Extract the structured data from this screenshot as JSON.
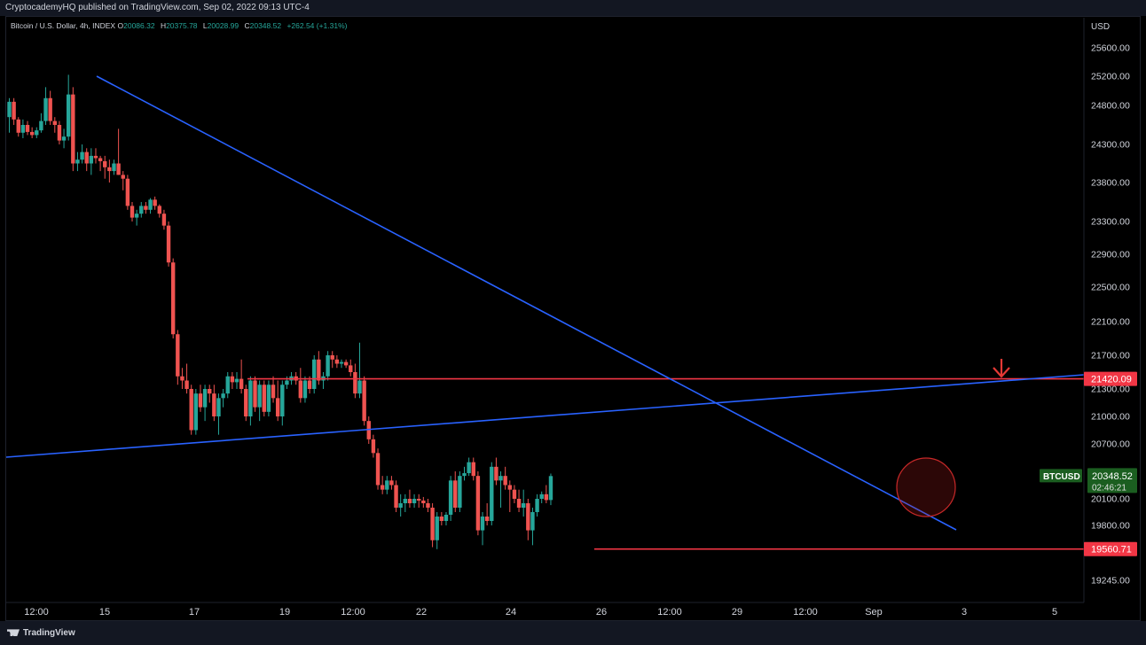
{
  "header": {
    "published": "CryptocademyHQ published on TradingView.com, Sep 02, 2022 09:13 UTC-4"
  },
  "legend": {
    "symbol": "Bitcoin / U.S. Dollar, 4h, INDEX",
    "o_label": "O",
    "o": "20086.32",
    "h_label": "H",
    "h": "20375.78",
    "l_label": "L",
    "l": "20028.99",
    "c_label": "C",
    "c": "20348.52",
    "change": "+262.54 (+1.31%)"
  },
  "colors": {
    "bull": "#26a69a",
    "bear": "#ef5350",
    "trendline": "#2962ff",
    "support_line": "#f23645",
    "background": "#000000",
    "text": "#d1d4dc"
  },
  "price_axis": {
    "currency": "USD",
    "ticks": [
      "25600.00",
      "25200.00",
      "24800.00",
      "24300.00",
      "23800.00",
      "23300.00",
      "22900.00",
      "22500.00",
      "22100.00",
      "21700.00",
      "21300.00",
      "21000.00",
      "20700.00",
      "20100.00",
      "19800.00",
      "19245.00"
    ]
  },
  "price_labels": {
    "resistance": "21420.09",
    "support": "19560.71",
    "ticker": "BTCUSD",
    "last_price": "20348.52",
    "countdown": "02:46:21"
  },
  "time_axis": {
    "ticks": [
      "12:00",
      "15",
      "17",
      "19",
      "12:00",
      "22",
      "24",
      "26",
      "12:00",
      "29",
      "12:00",
      "Sep",
      "3",
      "5"
    ]
  },
  "footer": {
    "brand": "TradingView"
  },
  "chart_data": {
    "type": "candlestick",
    "symbol": "Bitcoin / U.S. Dollar",
    "timeframe": "4h",
    "ylim": [
      19100,
      25800
    ],
    "horizontal_levels": [
      {
        "price": 21420.09
      },
      {
        "price": 19560.71
      }
    ],
    "trendlines": [
      {
        "from": {
          "time": "Aug 14 20:00",
          "price": 25220
        },
        "to": {
          "time": "Sep 03 04:00",
          "price": 19870
        }
      },
      {
        "from": {
          "time": "Aug 13 00:00",
          "price": 20550
        },
        "to": {
          "time": "Sep 04 20:00",
          "price": 21490
        }
      }
    ],
    "candles": [
      {
        "o": 24650,
        "h": 24900,
        "l": 24450,
        "c": 24850
      },
      {
        "o": 24850,
        "h": 24900,
        "l": 24550,
        "c": 24620
      },
      {
        "o": 24620,
        "h": 24650,
        "l": 24400,
        "c": 24450
      },
      {
        "o": 24450,
        "h": 24620,
        "l": 24380,
        "c": 24550
      },
      {
        "o": 24550,
        "h": 24600,
        "l": 24420,
        "c": 24460
      },
      {
        "o": 24460,
        "h": 24520,
        "l": 24380,
        "c": 24420
      },
      {
        "o": 24420,
        "h": 24520,
        "l": 24380,
        "c": 24480
      },
      {
        "o": 24480,
        "h": 24700,
        "l": 24450,
        "c": 24600
      },
      {
        "o": 24600,
        "h": 25050,
        "l": 24550,
        "c": 24900
      },
      {
        "o": 24900,
        "h": 25000,
        "l": 24550,
        "c": 24600
      },
      {
        "o": 24600,
        "h": 24650,
        "l": 24450,
        "c": 24550
      },
      {
        "o": 24550,
        "h": 24600,
        "l": 24300,
        "c": 24350
      },
      {
        "o": 24350,
        "h": 24500,
        "l": 24250,
        "c": 24400
      },
      {
        "o": 24400,
        "h": 25220,
        "l": 24350,
        "c": 24950
      },
      {
        "o": 24950,
        "h": 25050,
        "l": 23950,
        "c": 24050
      },
      {
        "o": 24050,
        "h": 24200,
        "l": 23950,
        "c": 24100
      },
      {
        "o": 24100,
        "h": 24300,
        "l": 24050,
        "c": 24200
      },
      {
        "o": 24200,
        "h": 24250,
        "l": 23950,
        "c": 24050
      },
      {
        "o": 24050,
        "h": 24250,
        "l": 23900,
        "c": 24150
      },
      {
        "o": 24150,
        "h": 24250,
        "l": 24050,
        "c": 24120
      },
      {
        "o": 24120,
        "h": 24150,
        "l": 23950,
        "c": 24080
      },
      {
        "o": 24080,
        "h": 24150,
        "l": 23850,
        "c": 24000
      },
      {
        "o": 24000,
        "h": 24100,
        "l": 23800,
        "c": 23950
      },
      {
        "o": 23950,
        "h": 24100,
        "l": 23900,
        "c": 24050
      },
      {
        "o": 24050,
        "h": 24500,
        "l": 23900,
        "c": 23900
      },
      {
        "o": 23900,
        "h": 23950,
        "l": 23700,
        "c": 23850
      },
      {
        "o": 23850,
        "h": 23900,
        "l": 23450,
        "c": 23500
      },
      {
        "o": 23500,
        "h": 23550,
        "l": 23300,
        "c": 23350
      },
      {
        "o": 23350,
        "h": 23450,
        "l": 23250,
        "c": 23400
      },
      {
        "o": 23400,
        "h": 23550,
        "l": 23350,
        "c": 23500
      },
      {
        "o": 23500,
        "h": 23550,
        "l": 23400,
        "c": 23450
      },
      {
        "o": 23450,
        "h": 23600,
        "l": 23400,
        "c": 23580
      },
      {
        "o": 23580,
        "h": 23620,
        "l": 23450,
        "c": 23500
      },
      {
        "o": 23500,
        "h": 23520,
        "l": 23350,
        "c": 23400
      },
      {
        "o": 23400,
        "h": 23450,
        "l": 23200,
        "c": 23250
      },
      {
        "o": 23250,
        "h": 23300,
        "l": 22750,
        "c": 22800
      },
      {
        "o": 22800,
        "h": 22850,
        "l": 21900,
        "c": 21950
      },
      {
        "o": 21950,
        "h": 22000,
        "l": 21350,
        "c": 21450
      },
      {
        "o": 21450,
        "h": 21550,
        "l": 21300,
        "c": 21400
      },
      {
        "o": 21400,
        "h": 21600,
        "l": 21250,
        "c": 21300
      },
      {
        "o": 21300,
        "h": 21350,
        "l": 20800,
        "c": 20850
      },
      {
        "o": 20850,
        "h": 21300,
        "l": 20800,
        "c": 21250
      },
      {
        "o": 21250,
        "h": 21350,
        "l": 21050,
        "c": 21100
      },
      {
        "o": 21100,
        "h": 21350,
        "l": 20950,
        "c": 21300
      },
      {
        "o": 21300,
        "h": 21350,
        "l": 21150,
        "c": 21250
      },
      {
        "o": 21250,
        "h": 21350,
        "l": 20950,
        "c": 21000
      },
      {
        "o": 21000,
        "h": 21250,
        "l": 20800,
        "c": 21200
      },
      {
        "o": 21200,
        "h": 21300,
        "l": 21100,
        "c": 21250
      },
      {
        "o": 21250,
        "h": 21500,
        "l": 21200,
        "c": 21450
      },
      {
        "o": 21450,
        "h": 21500,
        "l": 21300,
        "c": 21380
      },
      {
        "o": 21380,
        "h": 21500,
        "l": 21300,
        "c": 21420
      },
      {
        "o": 21420,
        "h": 21650,
        "l": 21250,
        "c": 21300
      },
      {
        "o": 21300,
        "h": 21350,
        "l": 20950,
        "c": 21000
      },
      {
        "o": 21000,
        "h": 21450,
        "l": 20900,
        "c": 21400
      },
      {
        "o": 21400,
        "h": 21450,
        "l": 21050,
        "c": 21100
      },
      {
        "o": 21100,
        "h": 21400,
        "l": 20950,
        "c": 21350
      },
      {
        "o": 21350,
        "h": 21400,
        "l": 21000,
        "c": 21050
      },
      {
        "o": 21050,
        "h": 21400,
        "l": 21000,
        "c": 21350
      },
      {
        "o": 21350,
        "h": 21450,
        "l": 21150,
        "c": 21200
      },
      {
        "o": 21200,
        "h": 21400,
        "l": 20950,
        "c": 21000
      },
      {
        "o": 21000,
        "h": 21400,
        "l": 20900,
        "c": 21350
      },
      {
        "o": 21350,
        "h": 21450,
        "l": 21300,
        "c": 21400
      },
      {
        "o": 21400,
        "h": 21500,
        "l": 21350,
        "c": 21450
      },
      {
        "o": 21450,
        "h": 21500,
        "l": 21350,
        "c": 21400
      },
      {
        "o": 21400,
        "h": 21550,
        "l": 21150,
        "c": 21200
      },
      {
        "o": 21200,
        "h": 21450,
        "l": 21150,
        "c": 21400
      },
      {
        "o": 21400,
        "h": 21450,
        "l": 21250,
        "c": 21300
      },
      {
        "o": 21300,
        "h": 21700,
        "l": 21250,
        "c": 21650
      },
      {
        "o": 21650,
        "h": 21750,
        "l": 21350,
        "c": 21400
      },
      {
        "o": 21400,
        "h": 21500,
        "l": 21300,
        "c": 21450
      },
      {
        "o": 21450,
        "h": 21750,
        "l": 21400,
        "c": 21700
      },
      {
        "o": 21700,
        "h": 21750,
        "l": 21550,
        "c": 21650
      },
      {
        "o": 21650,
        "h": 21700,
        "l": 21550,
        "c": 21600
      },
      {
        "o": 21600,
        "h": 21650,
        "l": 21550,
        "c": 21620
      },
      {
        "o": 21620,
        "h": 21650,
        "l": 21550,
        "c": 21580
      },
      {
        "o": 21580,
        "h": 21650,
        "l": 21450,
        "c": 21500
      },
      {
        "o": 21500,
        "h": 21600,
        "l": 21200,
        "c": 21250
      },
      {
        "o": 21250,
        "h": 21850,
        "l": 21200,
        "c": 21400
      },
      {
        "o": 21400,
        "h": 21450,
        "l": 20900,
        "c": 20950
      },
      {
        "o": 20950,
        "h": 21000,
        "l": 20700,
        "c": 20750
      },
      {
        "o": 20750,
        "h": 20800,
        "l": 20550,
        "c": 20600
      },
      {
        "o": 20600,
        "h": 20650,
        "l": 20200,
        "c": 20250
      },
      {
        "o": 20250,
        "h": 20350,
        "l": 20150,
        "c": 20200
      },
      {
        "o": 20200,
        "h": 20350,
        "l": 20150,
        "c": 20300
      },
      {
        "o": 20300,
        "h": 20350,
        "l": 20200,
        "c": 20250
      },
      {
        "o": 20250,
        "h": 20300,
        "l": 19950,
        "c": 20000
      },
      {
        "o": 20000,
        "h": 20150,
        "l": 19900,
        "c": 20050
      },
      {
        "o": 20050,
        "h": 20150,
        "l": 19950,
        "c": 20100
      },
      {
        "o": 20100,
        "h": 20200,
        "l": 20000,
        "c": 20050
      },
      {
        "o": 20050,
        "h": 20150,
        "l": 20000,
        "c": 20100
      },
      {
        "o": 20100,
        "h": 20150,
        "l": 20000,
        "c": 20080
      },
      {
        "o": 20080,
        "h": 20120,
        "l": 20000,
        "c": 20050
      },
      {
        "o": 20050,
        "h": 20100,
        "l": 19950,
        "c": 20000
      },
      {
        "o": 20000,
        "h": 20050,
        "l": 19580,
        "c": 19650
      },
      {
        "o": 19650,
        "h": 19950,
        "l": 19560,
        "c": 19900
      },
      {
        "o": 19900,
        "h": 19950,
        "l": 19800,
        "c": 19850
      },
      {
        "o": 19850,
        "h": 19950,
        "l": 19800,
        "c": 19920
      },
      {
        "o": 19920,
        "h": 20350,
        "l": 19850,
        "c": 20300
      },
      {
        "o": 20300,
        "h": 20400,
        "l": 19950,
        "c": 20000
      },
      {
        "o": 20000,
        "h": 20400,
        "l": 19950,
        "c": 20350
      },
      {
        "o": 20350,
        "h": 20450,
        "l": 20300,
        "c": 20380
      },
      {
        "o": 20380,
        "h": 20550,
        "l": 20350,
        "c": 20500
      },
      {
        "o": 20500,
        "h": 20550,
        "l": 20300,
        "c": 20350
      },
      {
        "o": 20350,
        "h": 20400,
        "l": 19700,
        "c": 19750
      },
      {
        "o": 19750,
        "h": 19950,
        "l": 19600,
        "c": 19900
      },
      {
        "o": 19900,
        "h": 20050,
        "l": 19800,
        "c": 19850
      },
      {
        "o": 19850,
        "h": 20500,
        "l": 19800,
        "c": 20450
      },
      {
        "o": 20450,
        "h": 20550,
        "l": 20250,
        "c": 20300
      },
      {
        "o": 20300,
        "h": 20400,
        "l": 20000,
        "c": 20350
      },
      {
        "o": 20350,
        "h": 20450,
        "l": 20200,
        "c": 20250
      },
      {
        "o": 20250,
        "h": 20300,
        "l": 19950,
        "c": 20200
      },
      {
        "o": 20200,
        "h": 20250,
        "l": 20050,
        "c": 20100
      },
      {
        "o": 20100,
        "h": 20200,
        "l": 19950,
        "c": 20000
      },
      {
        "o": 20000,
        "h": 20200,
        "l": 19900,
        "c": 20050
      },
      {
        "o": 20050,
        "h": 20100,
        "l": 19650,
        "c": 19750
      },
      {
        "o": 19750,
        "h": 20000,
        "l": 19600,
        "c": 19950
      },
      {
        "o": 19950,
        "h": 20150,
        "l": 19900,
        "c": 20100
      },
      {
        "o": 20100,
        "h": 20180,
        "l": 20050,
        "c": 20150
      },
      {
        "o": 20150,
        "h": 20250,
        "l": 20050,
        "c": 20086
      },
      {
        "o": 20086.32,
        "h": 20375.78,
        "l": 20028.99,
        "c": 20348.52
      }
    ]
  }
}
